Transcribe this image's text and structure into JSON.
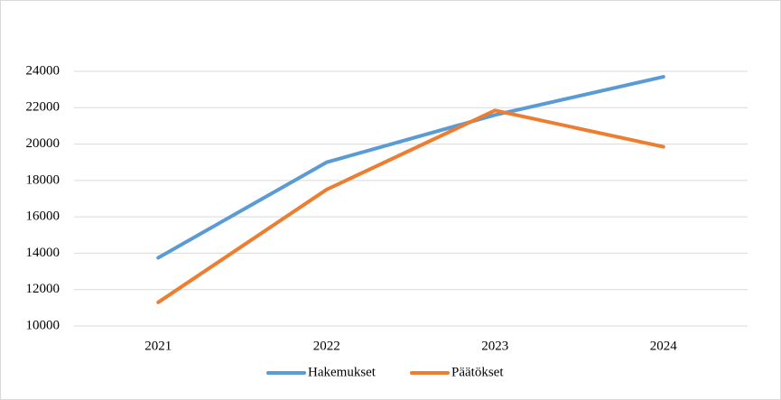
{
  "chart_data": {
    "type": "line",
    "categories": [
      "2021",
      "2022",
      "2023",
      "2024"
    ],
    "series": [
      {
        "name": "Hakemukset",
        "color": "#5b9bd5",
        "values": [
          13750,
          19000,
          21600,
          23700
        ]
      },
      {
        "name": "Päätökset",
        "color": "#ed7d31",
        "values": [
          11300,
          17500,
          21850,
          19850
        ]
      }
    ],
    "ylim": [
      10000,
      24000
    ],
    "yticks": [
      10000,
      12000,
      14000,
      16000,
      18000,
      20000,
      22000,
      24000
    ],
    "grid": true,
    "legend": "bottom"
  }
}
